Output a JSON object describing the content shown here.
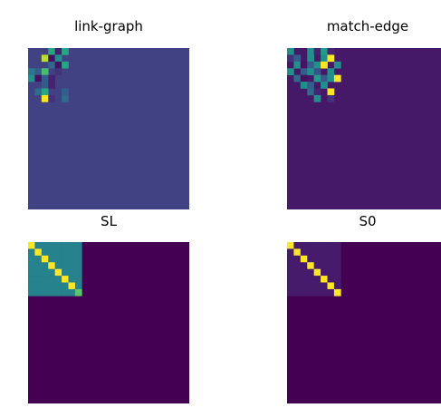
{
  "chart_data": [
    {
      "type": "heatmap",
      "title": "link-graph",
      "colormap": "viridis",
      "grid_size": 24,
      "background_value": 0.2,
      "cells": [
        [
          0,
          3,
          0.6
        ],
        [
          0,
          4,
          0.1
        ],
        [
          0,
          5,
          0.6
        ],
        [
          1,
          2,
          0.9
        ],
        [
          1,
          3,
          0.05
        ],
        [
          1,
          4,
          0.5
        ],
        [
          2,
          3,
          0.35
        ],
        [
          2,
          4,
          0.05
        ],
        [
          2,
          5,
          0.6
        ],
        [
          3,
          0,
          0.4
        ],
        [
          3,
          1,
          0.3
        ],
        [
          3,
          2,
          0.7
        ],
        [
          3,
          4,
          0.15
        ],
        [
          4,
          0,
          0.5
        ],
        [
          4,
          1,
          0.05
        ],
        [
          4,
          2,
          0.3
        ],
        [
          4,
          3,
          0.1
        ],
        [
          5,
          1,
          0.2
        ],
        [
          5,
          2,
          0.3
        ],
        [
          5,
          3,
          0.1
        ],
        [
          6,
          1,
          0.35
        ],
        [
          6,
          2,
          0.6
        ],
        [
          6,
          5,
          0.3
        ],
        [
          7,
          2,
          1.0
        ],
        [
          7,
          3,
          0.15
        ],
        [
          7,
          5,
          0.35
        ]
      ]
    },
    {
      "type": "heatmap",
      "title": "match-edge",
      "colormap": "viridis",
      "grid_size": 24,
      "background_value": 0.07,
      "cells": [
        [
          0,
          0,
          0.5
        ],
        [
          0,
          3,
          0.5
        ],
        [
          0,
          4,
          0.1
        ],
        [
          0,
          5,
          0.55
        ],
        [
          0,
          6,
          0.1
        ],
        [
          1,
          0,
          0.15
        ],
        [
          1,
          1,
          0.3
        ],
        [
          1,
          3,
          0.5
        ],
        [
          1,
          5,
          0.5
        ],
        [
          1,
          6,
          1.0
        ],
        [
          2,
          1,
          0.5
        ],
        [
          2,
          2,
          0.05
        ],
        [
          2,
          3,
          0.3
        ],
        [
          2,
          4,
          0.5
        ],
        [
          2,
          5,
          1.0
        ],
        [
          2,
          7,
          0.5
        ],
        [
          3,
          0,
          0.5
        ],
        [
          3,
          2,
          0.3
        ],
        [
          3,
          3,
          0.5
        ],
        [
          3,
          4,
          0.25
        ],
        [
          3,
          6,
          0.5
        ],
        [
          4,
          1,
          0.35
        ],
        [
          4,
          2,
          0.05
        ],
        [
          4,
          4,
          0.55
        ],
        [
          4,
          5,
          0.3
        ],
        [
          4,
          6,
          0.5
        ],
        [
          4,
          7,
          1.0
        ],
        [
          5,
          2,
          0.5
        ],
        [
          5,
          3,
          0.3
        ],
        [
          5,
          5,
          0.5
        ],
        [
          6,
          3,
          0.35
        ],
        [
          6,
          4,
          0.1
        ],
        [
          6,
          6,
          1.0
        ],
        [
          7,
          4,
          0.5
        ],
        [
          7,
          6,
          0.15
        ]
      ]
    },
    {
      "type": "heatmap",
      "title": "SL",
      "colormap": "viridis",
      "grid_size": 24,
      "background_value": 0.0,
      "block_size": 8,
      "block_value": 0.45,
      "diagonal_value": 1.0,
      "diagonal_secondary_value": 0.75,
      "diagonal_secondary_indices": [
        7
      ],
      "cells": []
    },
    {
      "type": "heatmap",
      "title": "S0",
      "colormap": "viridis",
      "grid_size": 24,
      "background_value": 0.0,
      "block_size": 8,
      "block_value": 0.08,
      "diagonal_value": 1.0,
      "cells": []
    }
  ]
}
